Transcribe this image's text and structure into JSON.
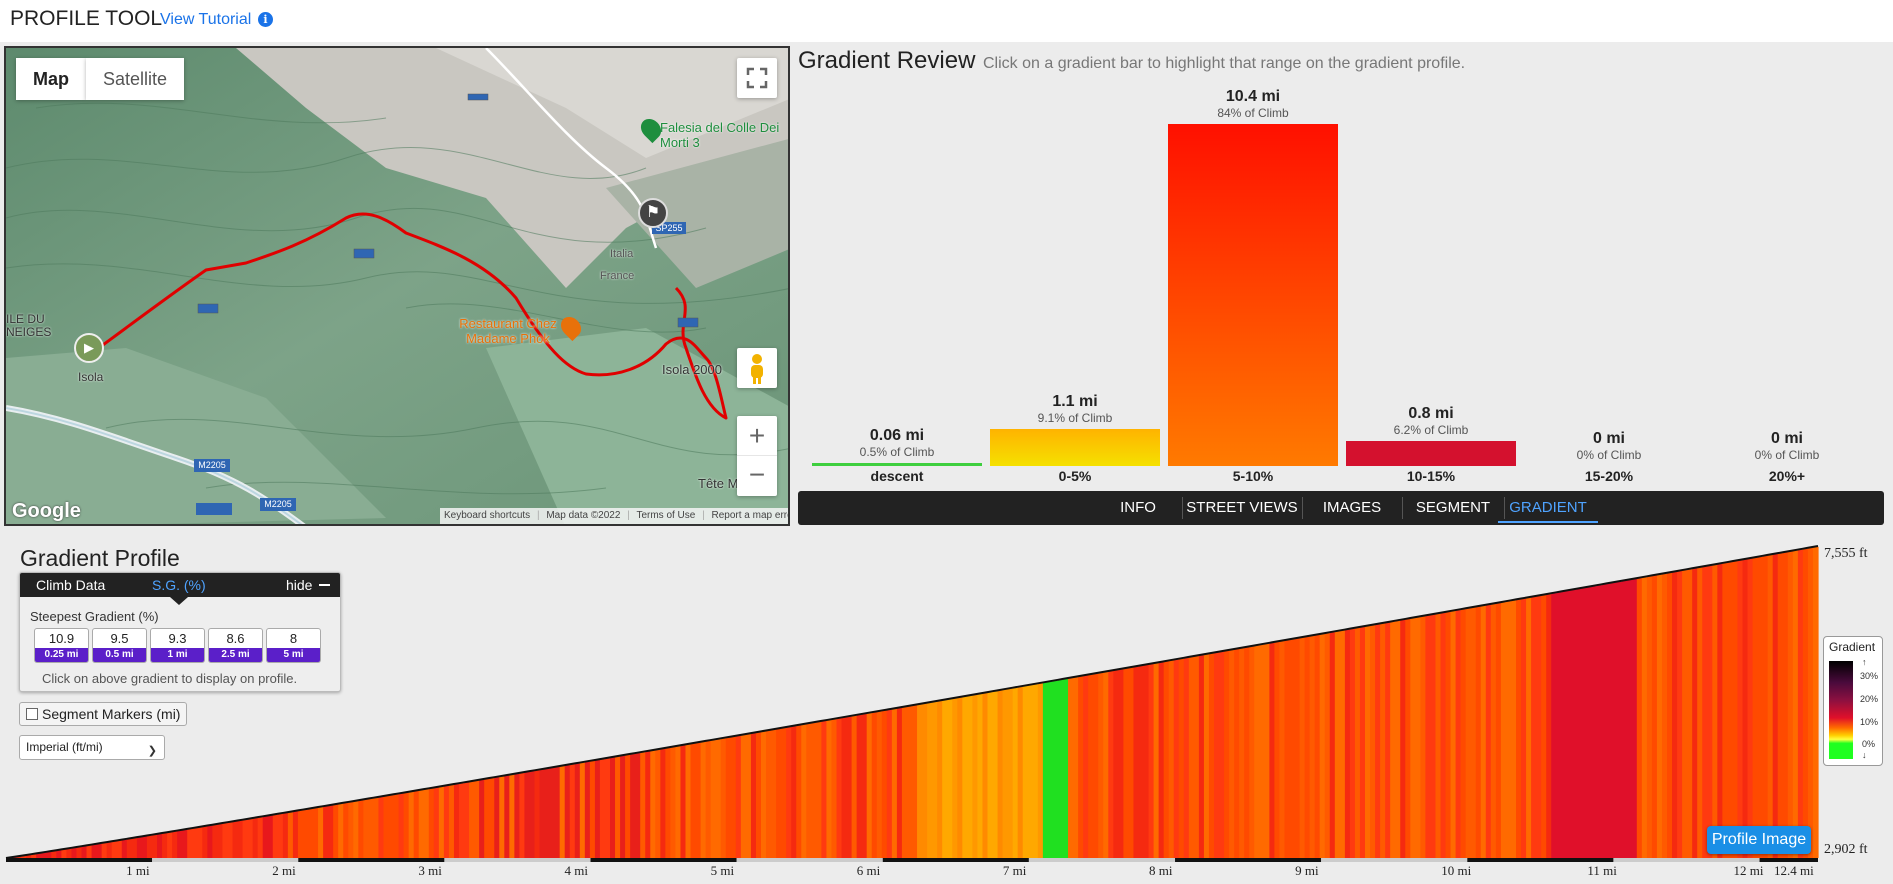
{
  "header": {
    "title": "PROFILE TOOL",
    "tutorial_link": "View Tutorial",
    "info_icon": "i"
  },
  "map": {
    "type_buttons": [
      "Map",
      "Satellite"
    ],
    "selected_type": "Map",
    "labels": {
      "falesia": "Falesia del Colle Dei Morti 3",
      "restaurant": "Restaurant Chez Madame Phok",
      "isola_2000": "Isola 2000",
      "isola": "Isola",
      "neiges_1": "ILE DU",
      "neiges_2": "NEIGES",
      "italia": "Italia",
      "france": "France",
      "tete": "Tête M",
      "road_m2205a": "M2205",
      "road_m2205b": "M2205",
      "road_sp255": "SP255"
    },
    "zoom_in": "+",
    "zoom_out": "−",
    "google_logo": "Google",
    "footer": [
      "Keyboard shortcuts",
      "Map data ©2022",
      "Terms of Use",
      "Report a map error"
    ],
    "icons": [
      "fullscreen-icon",
      "pegman-icon",
      "start-marker-icon",
      "finish-flag-icon",
      "restaurant-marker-icon",
      "green-place-marker-icon"
    ]
  },
  "gradient_review": {
    "title": "Gradient Review",
    "subtitle": "Click on a gradient bar to highlight that range on the gradient profile.",
    "bars": [
      {
        "category": "descent",
        "distance": "0.06 mi",
        "percent": "0.5% of Climb",
        "share": 0.5,
        "color": "#3ecf3e"
      },
      {
        "category": "0-5%",
        "distance": "1.1 mi",
        "percent": "9.1% of Climb",
        "share": 9.1,
        "color": "#ffb300"
      },
      {
        "category": "5-10%",
        "distance": "10.4 mi",
        "percent": "84% of Climb",
        "share": 84,
        "color": "#ff3a00"
      },
      {
        "category": "10-15%",
        "distance": "0.8 mi",
        "percent": "6.2% of Climb",
        "share": 6.2,
        "color": "#d4112e"
      },
      {
        "category": "15-20%",
        "distance": "0 mi",
        "percent": "0% of Climb",
        "share": 0,
        "color": "#7a0e3a"
      },
      {
        "category": "20%+",
        "distance": "0 mi",
        "percent": "0% of Climb",
        "share": 0,
        "color": "#111111"
      }
    ]
  },
  "tabs": {
    "items": [
      "INFO",
      "STREET VIEWS",
      "IMAGES",
      "SEGMENT",
      "GRADIENT"
    ],
    "active": "GRADIENT"
  },
  "gradient_profile": {
    "title": "Gradient Profile",
    "panel_tabs": {
      "climb_data": "Climb Data",
      "sg": "S.G. (%)",
      "hide": "hide"
    },
    "steepest_label": "Steepest Gradient (%)",
    "steepest": [
      {
        "value": "10.9",
        "length": "0.25 mi"
      },
      {
        "value": "9.5",
        "length": "0.5 mi"
      },
      {
        "value": "9.3",
        "length": "1 mi"
      },
      {
        "value": "8.6",
        "length": "2.5 mi"
      },
      {
        "value": "8",
        "length": "5 mi"
      }
    ],
    "hint": "Click on above gradient to display on profile.",
    "segment_markers": "Segment Markers (mi)",
    "units": "Imperial (ft/mi)",
    "profile_image_button": "Profile Image",
    "elevation_top": "7,555 ft",
    "elevation_bottom": "2,902 ft",
    "mile_labels": [
      "1 mi",
      "2 mi",
      "3 mi",
      "4 mi",
      "5 mi",
      "6 mi",
      "7 mi",
      "8 mi",
      "9 mi",
      "10 mi",
      "11 mi",
      "12 mi",
      "12.4 mi"
    ],
    "legend": {
      "title": "Gradient",
      "ticks": [
        "30%",
        "20%",
        "10%",
        "0%"
      ]
    }
  }
}
